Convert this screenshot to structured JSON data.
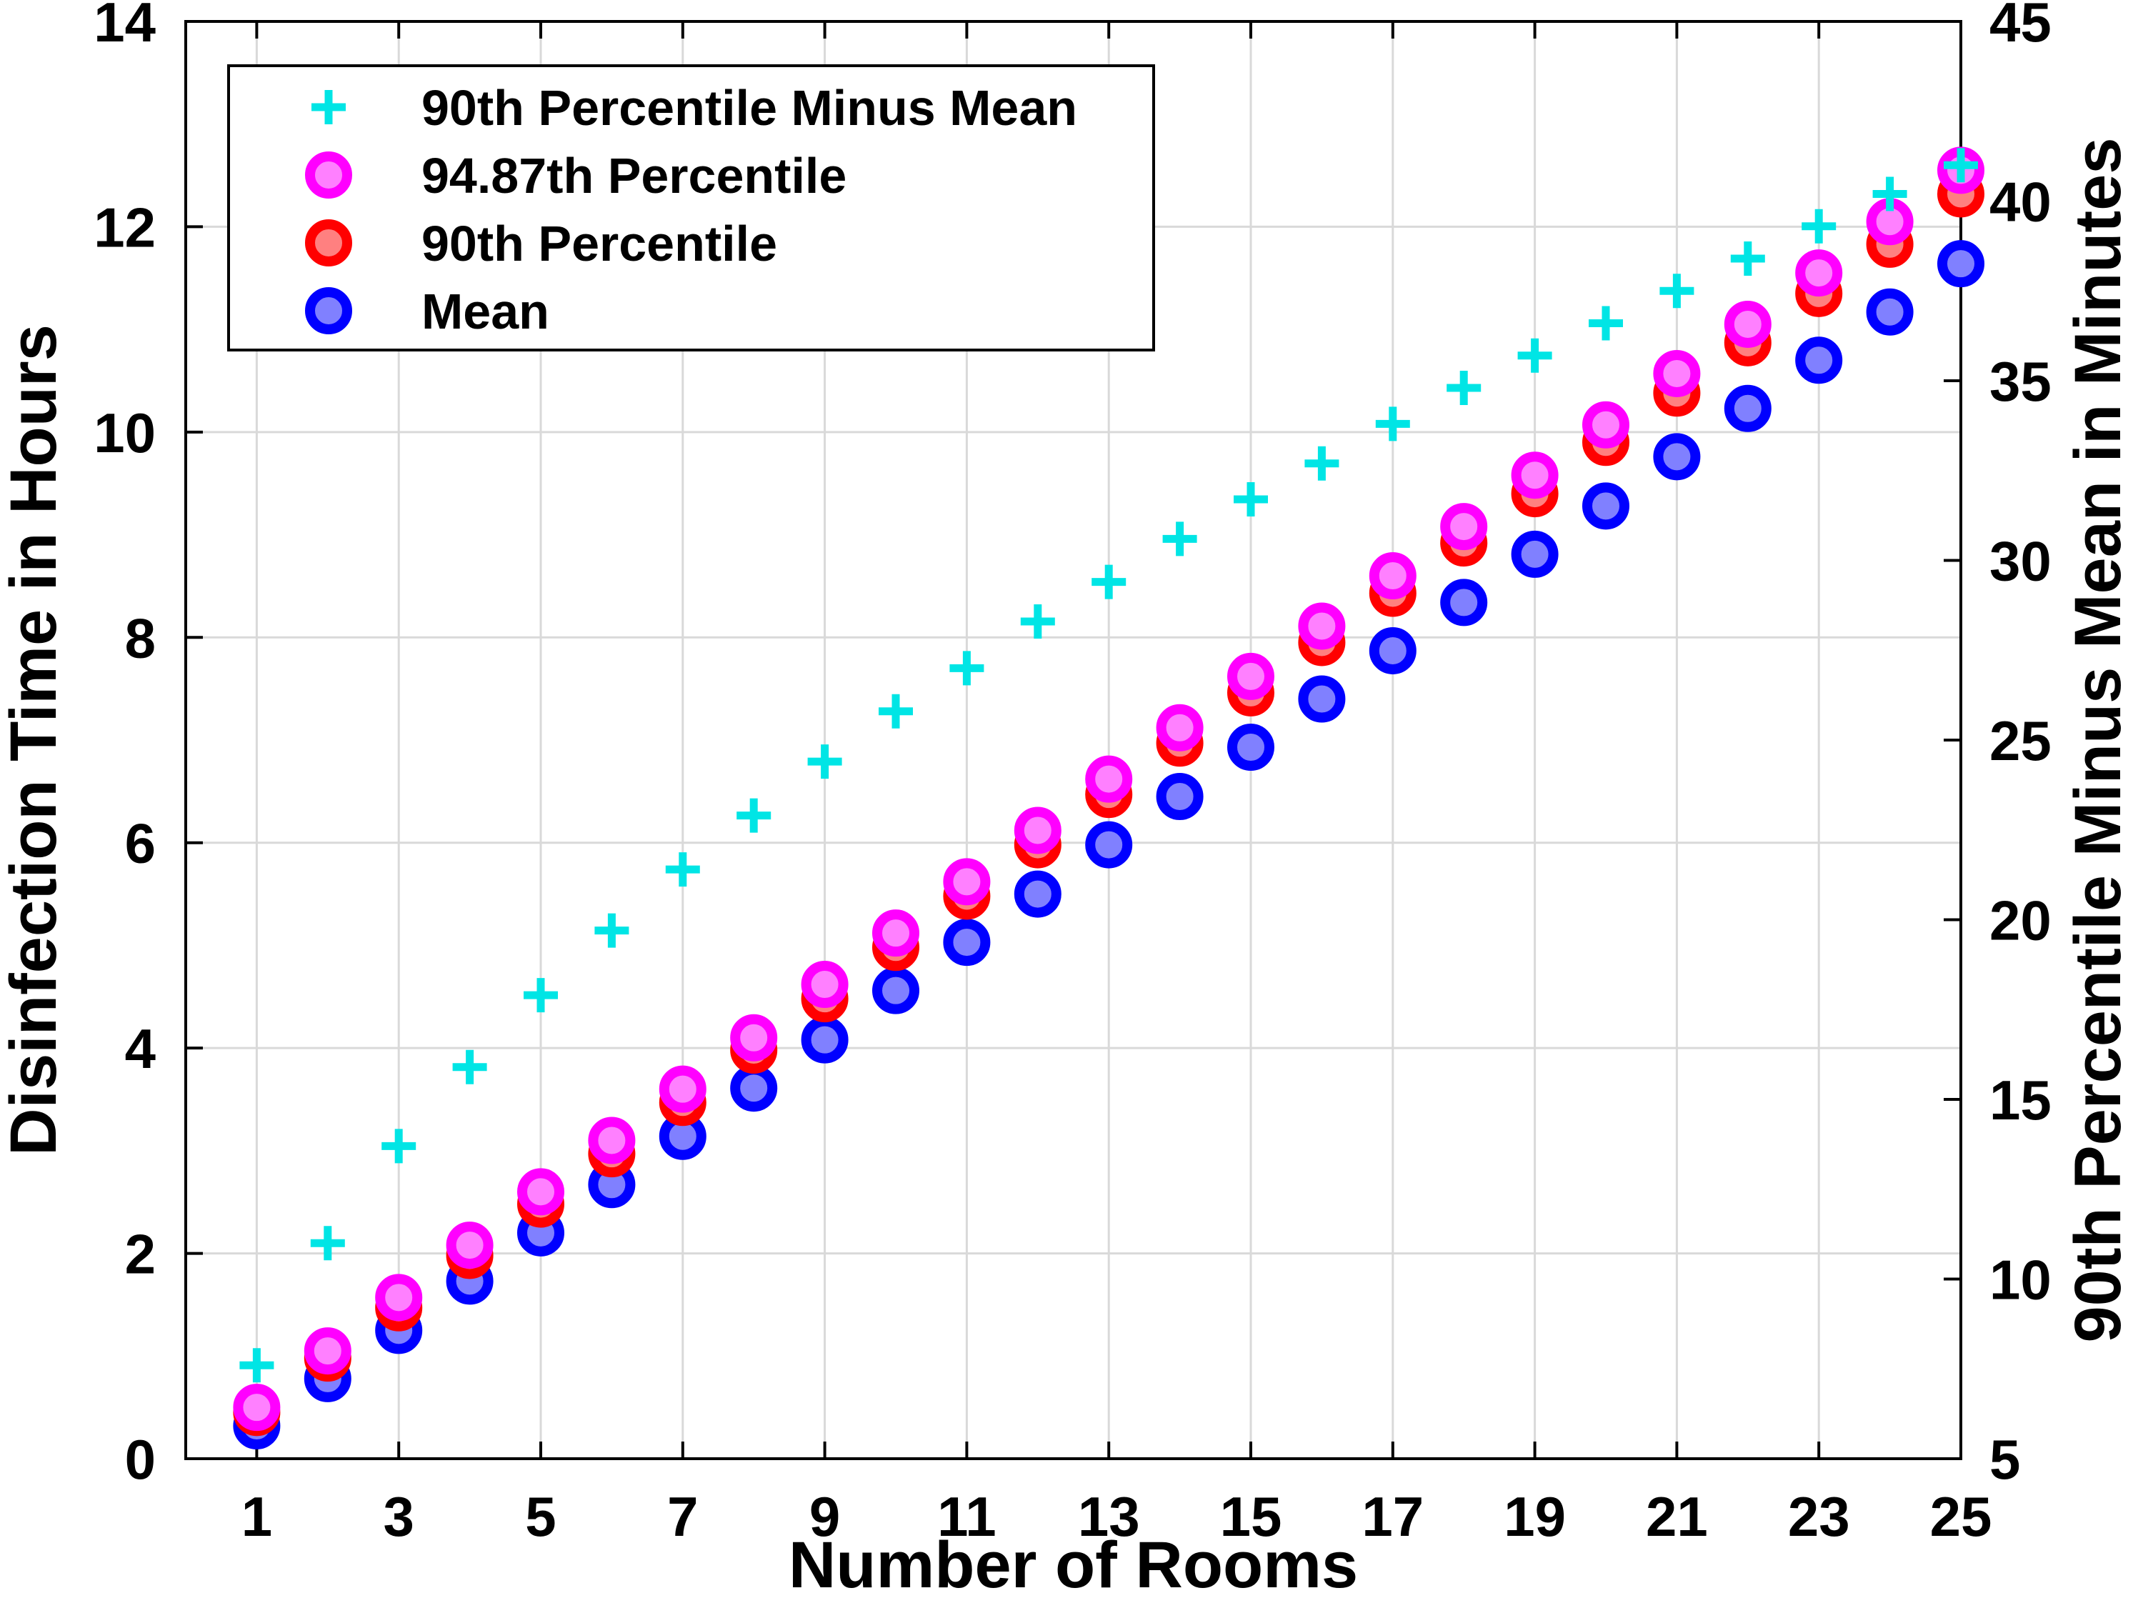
{
  "chart_data": {
    "type": "scatter",
    "xlabel": "Number of Rooms",
    "ylabel": "Disinfection Time in Hours",
    "ylabel_right": "90th Percentile Minus Mean in Minutes",
    "xlim": [
      0,
      25
    ],
    "ylim": [
      0,
      14
    ],
    "ylim_right": [
      5,
      45
    ],
    "x_ticks": [
      1,
      3,
      5,
      7,
      9,
      11,
      13,
      15,
      17,
      19,
      21,
      23,
      25
    ],
    "y_ticks": [
      0,
      2,
      4,
      6,
      8,
      10,
      12,
      14
    ],
    "y_ticks_right": [
      5,
      10,
      15,
      20,
      25,
      30,
      35,
      40,
      45
    ],
    "grid": true,
    "legend_position": "top-left",
    "x": [
      1,
      2,
      3,
      4,
      5,
      6,
      7,
      8,
      9,
      10,
      11,
      12,
      13,
      14,
      15,
      16,
      17,
      18,
      19,
      20,
      21,
      22,
      23,
      24,
      25
    ],
    "series": [
      {
        "name": "90th Percentile Minus Mean",
        "axis": "right",
        "marker": "plus",
        "color": "#00e5e5",
        "values": [
          7.6,
          11.0,
          13.7,
          15.9,
          17.9,
          19.7,
          21.4,
          22.9,
          24.4,
          25.8,
          27.0,
          28.3,
          29.4,
          30.6,
          31.7,
          32.7,
          33.8,
          34.8,
          35.7,
          36.6,
          37.5,
          38.4,
          39.3,
          40.2,
          41.0
        ]
      },
      {
        "name": "94.87th Percentile",
        "axis": "left",
        "marker": "circle",
        "color": "#ff00ff",
        "fill": "#ff80ff",
        "values": [
          0.5,
          1.05,
          1.57,
          2.08,
          2.6,
          3.1,
          3.6,
          4.1,
          4.62,
          5.12,
          5.62,
          6.12,
          6.62,
          7.12,
          7.62,
          8.11,
          8.6,
          9.08,
          9.58,
          10.07,
          10.57,
          11.05,
          11.55,
          12.05,
          12.55
        ]
      },
      {
        "name": "90th Percentile",
        "axis": "left",
        "marker": "circle",
        "color": "#ff0000",
        "fill": "#ff8080",
        "values": [
          0.45,
          0.98,
          1.47,
          1.98,
          2.48,
          2.97,
          3.47,
          3.98,
          4.48,
          4.98,
          5.48,
          5.98,
          6.47,
          6.97,
          7.46,
          7.95,
          8.43,
          8.92,
          9.4,
          9.9,
          10.38,
          10.87,
          11.35,
          11.83,
          12.32
        ]
      },
      {
        "name": "Mean",
        "axis": "left",
        "marker": "circle",
        "color": "#0000ff",
        "fill": "#8080ff",
        "values": [
          0.32,
          0.78,
          1.25,
          1.73,
          2.2,
          2.67,
          3.14,
          3.61,
          4.08,
          4.56,
          5.03,
          5.5,
          5.98,
          6.45,
          6.93,
          7.4,
          7.87,
          8.34,
          8.81,
          9.28,
          9.76,
          10.23,
          10.7,
          11.17,
          11.64
        ]
      }
    ]
  }
}
